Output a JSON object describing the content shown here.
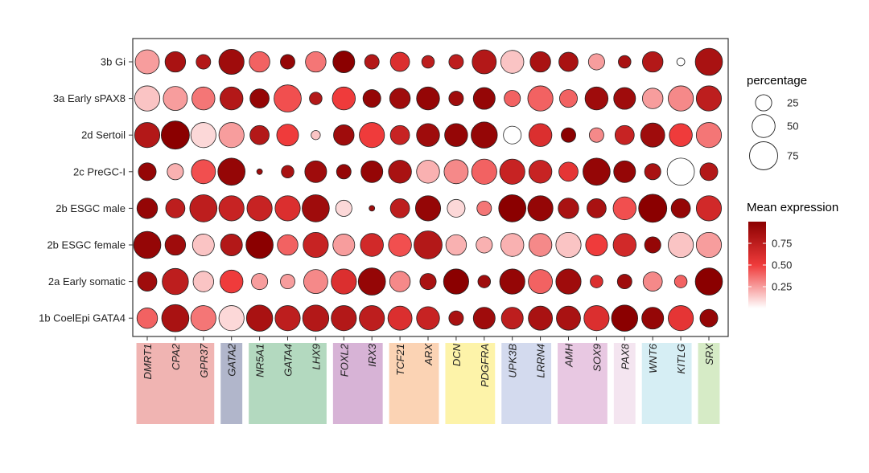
{
  "chart_data": {
    "type": "dotplot",
    "title": "",
    "xlabel": "",
    "ylabel": "",
    "genes": [
      "DMRT1",
      "CPA2",
      "GPR37",
      "GATA2",
      "NR5A1",
      "GATA4",
      "LHX9",
      "FOXL2",
      "IRX3",
      "TCF21",
      "ARX",
      "DCN",
      "PDGFRA",
      "UPK3B",
      "LRRN4",
      "AMH",
      "SOX9",
      "PAX8",
      "WNT6",
      "KITLG",
      "SRX"
    ],
    "clusters": [
      "3b Gi",
      "3a Early sPAX8",
      "2d Sertoil",
      "2c PreGC-I",
      "2b ESGC male",
      "2b ESGC female",
      "2a Early somatic",
      "1b CoelEpi GATA4"
    ],
    "gene_groups": [
      {
        "genes": [
          "DMRT1",
          "CPA2",
          "GPR37"
        ],
        "color": "#f0b4b2"
      },
      {
        "genes": [
          "GATA2"
        ],
        "color": "#b1b6cb"
      },
      {
        "genes": [
          "NR5A1",
          "GATA4",
          "LHX9"
        ],
        "color": "#b3d9bf"
      },
      {
        "genes": [
          "FOXL2",
          "IRX3"
        ],
        "color": "#d7b3d6"
      },
      {
        "genes": [
          "TCF21",
          "ARX"
        ],
        "color": "#fbd3b4"
      },
      {
        "genes": [
          "DCN",
          "PDGFRA"
        ],
        "color": "#fdf3a9"
      },
      {
        "genes": [
          "UPK3B",
          "LRRN4"
        ],
        "color": "#d3daee"
      },
      {
        "genes": [
          "AMH",
          "SOX9"
        ],
        "color": "#e8c8e2"
      },
      {
        "genes": [
          "PAX8"
        ],
        "color": "#f4e5f0"
      },
      {
        "genes": [
          "WNT6",
          "KITLG"
        ],
        "color": "#d6eef4"
      },
      {
        "genes": [
          "SRX"
        ],
        "color": "#d6ebc6"
      }
    ],
    "percentage": [
      [
        55,
        40,
        20,
        60,
        40,
        20,
        40,
        45,
        20,
        35,
        15,
        20,
        55,
        50,
        40,
        35,
        25,
        15,
        40,
        6,
        70
      ],
      [
        60,
        55,
        50,
        50,
        35,
        70,
        15,
        50,
        30,
        40,
        50,
        20,
        45,
        25,
        60,
        30,
        50,
        45,
        40,
        60,
        60
      ],
      [
        60,
        75,
        60,
        60,
        35,
        45,
        8,
        40,
        60,
        35,
        50,
        50,
        65,
        30,
        50,
        20,
        20,
        35,
        55,
        50,
        60
      ],
      [
        30,
        25,
        55,
        70,
        3,
        15,
        45,
        20,
        45,
        50,
        50,
        55,
        60,
        60,
        50,
        35,
        70,
        45,
        25,
        70,
        30
      ],
      [
        40,
        35,
        70,
        60,
        60,
        60,
        70,
        25,
        3,
        35,
        60,
        30,
        20,
        70,
        60,
        40,
        35,
        50,
        75,
        35,
        60
      ],
      [
        70,
        40,
        45,
        45,
        70,
        40,
        60,
        45,
        50,
        50,
        75,
        40,
        25,
        50,
        50,
        60,
        45,
        50,
        25,
        60,
        60
      ],
      [
        35,
        65,
        40,
        50,
        25,
        20,
        55,
        60,
        70,
        40,
        25,
        60,
        15,
        60,
        55,
        60,
        15,
        20,
        35,
        15,
        70
      ],
      [
        40,
        70,
        60,
        60,
        65,
        60,
        65,
        60,
        60,
        55,
        50,
        20,
        45,
        45,
        55,
        55,
        60,
        65,
        45,
        60,
        30
      ]
    ],
    "mean_expression": [
      [
        0.25,
        0.85,
        0.8,
        0.9,
        0.4,
        0.95,
        0.35,
        1.0,
        0.8,
        0.6,
        0.75,
        0.75,
        0.8,
        0.15,
        0.85,
        0.85,
        0.25,
        0.85,
        0.8,
        0.0,
        0.85
      ],
      [
        0.15,
        0.25,
        0.35,
        0.8,
        0.95,
        0.45,
        0.8,
        0.5,
        0.95,
        0.9,
        0.95,
        0.9,
        0.95,
        0.4,
        0.4,
        0.4,
        0.9,
        0.9,
        0.25,
        0.3,
        0.75
      ],
      [
        0.8,
        1.0,
        0.1,
        0.25,
        0.8,
        0.5,
        0.15,
        0.9,
        0.5,
        0.7,
        0.9,
        0.95,
        0.95,
        0.0,
        0.6,
        1.0,
        0.3,
        0.7,
        0.9,
        0.5,
        0.35
      ],
      [
        0.95,
        0.2,
        0.45,
        0.95,
        0.9,
        0.85,
        0.9,
        0.95,
        0.95,
        0.85,
        0.2,
        0.3,
        0.4,
        0.7,
        0.7,
        0.55,
        0.95,
        0.95,
        0.85,
        0.0,
        0.8
      ],
      [
        0.95,
        0.75,
        0.75,
        0.7,
        0.7,
        0.6,
        0.9,
        0.1,
        0.9,
        0.75,
        0.95,
        0.1,
        0.35,
        1.0,
        0.95,
        0.85,
        0.85,
        0.45,
        1.0,
        0.95,
        0.65
      ],
      [
        0.95,
        0.9,
        0.15,
        0.8,
        1.0,
        0.4,
        0.7,
        0.25,
        0.65,
        0.45,
        0.8,
        0.2,
        0.2,
        0.2,
        0.3,
        0.15,
        0.5,
        0.65,
        0.95,
        0.15,
        0.25
      ],
      [
        0.9,
        0.75,
        0.15,
        0.5,
        0.25,
        0.25,
        0.3,
        0.6,
        0.95,
        0.3,
        0.85,
        1.0,
        0.9,
        0.95,
        0.4,
        0.9,
        0.6,
        0.9,
        0.3,
        0.4,
        1.0
      ],
      [
        0.4,
        0.85,
        0.35,
        0.1,
        0.85,
        0.75,
        0.8,
        0.8,
        0.75,
        0.6,
        0.7,
        0.85,
        0.9,
        0.75,
        0.85,
        0.85,
        0.6,
        1.0,
        0.95,
        0.55,
        0.95
      ]
    ],
    "legend": {
      "size_title": "percentage",
      "size_values": [
        25,
        50,
        75
      ],
      "color_title": "Mean expression",
      "color_ticks": [
        0.75,
        0.5,
        0.25
      ],
      "color_tick_labels": [
        "0.75",
        "0.50",
        "0.25"
      ],
      "color_low": "#ffffff",
      "color_mid": "#ef3b3b",
      "color_high": "#8b0000"
    }
  }
}
